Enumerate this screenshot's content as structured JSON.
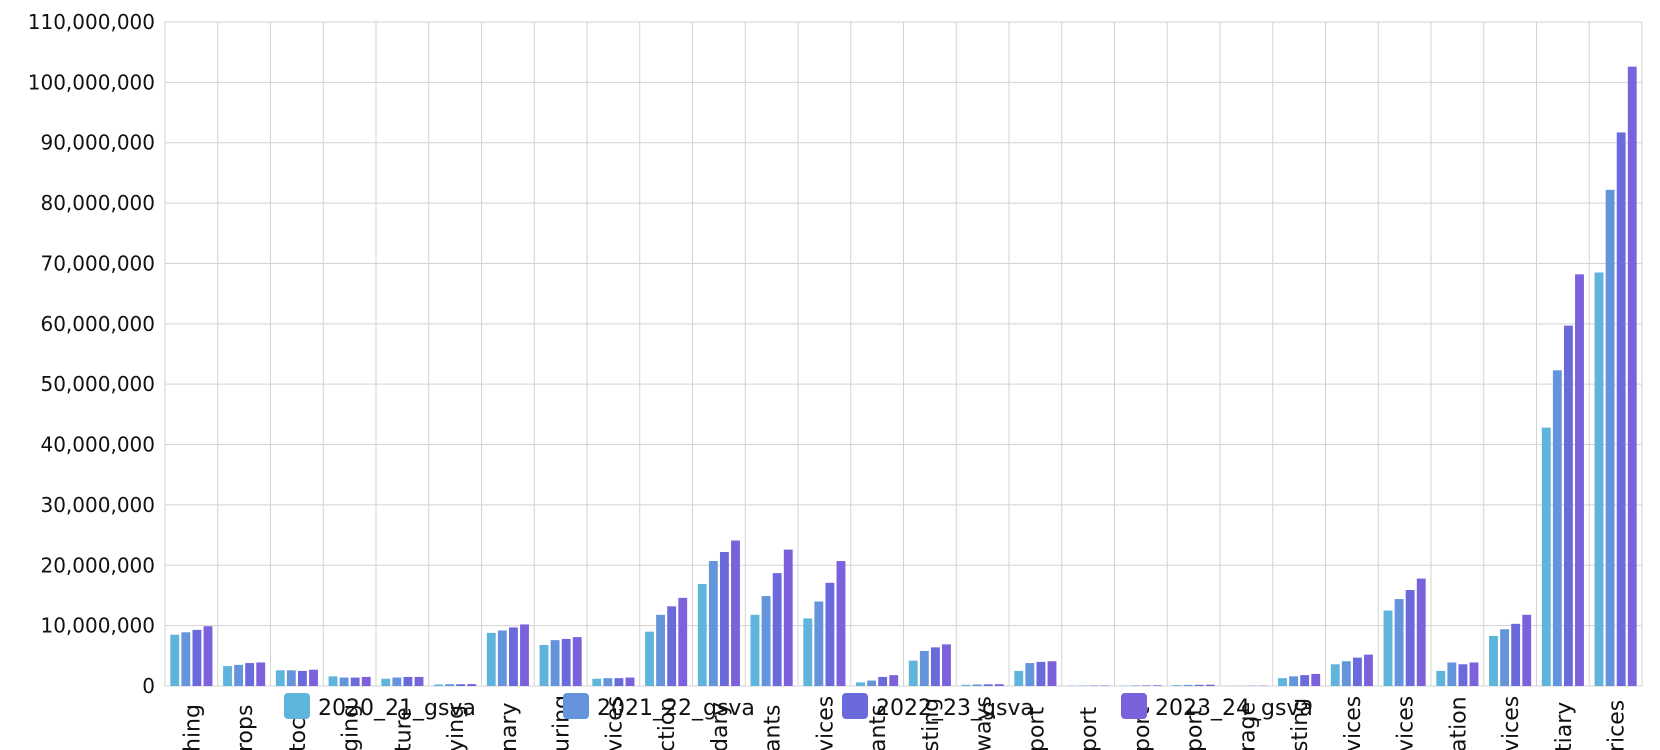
{
  "chart_data": {
    "type": "bar",
    "categories": [
      "Fishing",
      "Crops",
      "Livestock",
      "Forestry and logging",
      "Agriculture",
      "Mining and quarrying",
      "Primary",
      "Manufacturing",
      "Electricity, gas, water supply and other utility services",
      "Construction",
      "Secondary",
      "Trade, repair, hotels and restaurants",
      "Trade and repair services",
      "Hotels and restaurants",
      "Transport, storage, communication and broadcasting",
      "Railways",
      "Road transport",
      "Water transport",
      "Air transport",
      "Services incidental to transport",
      "Storage",
      "Communication and services related to broadcasting",
      "Financial services",
      "Real estate, ownership of dwelling and professional services",
      "Public administration",
      "Other services",
      "Tertiary",
      "Total GSVA at basic prices"
    ],
    "tick_labels": [
      "hing",
      "rops",
      "tock",
      "ging",
      "ture",
      "ying",
      "nary",
      "uring",
      "vices",
      "ction",
      "dary",
      "ants",
      "vices",
      "ants",
      "sting",
      "ways",
      "port",
      "port",
      "port",
      "port",
      "rage",
      "sting",
      "vices",
      "vices",
      "ation",
      "vices",
      "tiary",
      "rices"
    ],
    "series": [
      {
        "name": "2020_21_gsva",
        "color": "#5fb4dc",
        "values": [
          8500000,
          3300000,
          2600000,
          1600000,
          1200000,
          250000,
          8800000,
          6800000,
          1200000,
          9000000,
          16900000,
          11800000,
          11200000,
          600000,
          4200000,
          200000,
          2500000,
          50000,
          50000,
          150000,
          30000,
          1300000,
          3600000,
          12500000,
          2500000,
          8300000,
          42800000,
          68500000
        ]
      },
      {
        "name": "2021_22_gsva",
        "color": "#6495dc",
        "values": [
          8900000,
          3500000,
          2600000,
          1400000,
          1400000,
          300000,
          9200000,
          7600000,
          1300000,
          11800000,
          20700000,
          14900000,
          14000000,
          900000,
          5800000,
          250000,
          3800000,
          60000,
          80000,
          180000,
          40000,
          1600000,
          4100000,
          14400000,
          3900000,
          9400000,
          52300000,
          82200000
        ]
      },
      {
        "name": "2022_23_gsva",
        "color": "#6a6adc",
        "values": [
          9300000,
          3800000,
          2500000,
          1400000,
          1500000,
          300000,
          9700000,
          7800000,
          1300000,
          13200000,
          22200000,
          18700000,
          17100000,
          1500000,
          6400000,
          280000,
          4000000,
          70000,
          100000,
          200000,
          40000,
          1800000,
          4700000,
          15900000,
          3600000,
          10300000,
          59700000,
          91700000
        ]
      },
      {
        "name": "2023_24_gsva",
        "color": "#7b62dc",
        "values": [
          9900000,
          3900000,
          2700000,
          1500000,
          1500000,
          320000,
          10200000,
          8100000,
          1400000,
          14600000,
          24100000,
          22600000,
          20700000,
          1800000,
          6900000,
          300000,
          4100000,
          80000,
          120000,
          220000,
          50000,
          2000000,
          5200000,
          17800000,
          3900000,
          11800000,
          68200000,
          102600000
        ]
      }
    ],
    "yticks": [
      "0",
      "10,000,000",
      "20,000,000",
      "30,000,000",
      "40,000,000",
      "50,000,000",
      "60,000,000",
      "70,000,000",
      "80,000,000",
      "90,000,000",
      "100,000,000",
      "110,000,000"
    ],
    "ylim": [
      0,
      110000000
    ],
    "grid": true,
    "legend_position": "bottom"
  }
}
